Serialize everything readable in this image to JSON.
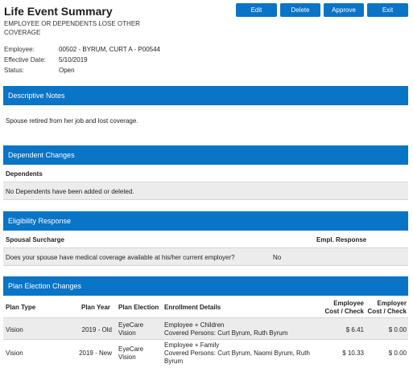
{
  "header": {
    "title": "Life Event Summary",
    "subtitle": "EMPLOYEE OR DEPENDENTS LOSE OTHER COVERAGE"
  },
  "buttons": {
    "edit": "Edit",
    "delete": "Delete",
    "approve": "Approve",
    "exit": "Exit"
  },
  "info": {
    "employee_label": "Employee:",
    "employee_value": "00502 - BYRUM, CURT A - P00544",
    "effective_label": "Effective Date:",
    "effective_value": "5/10/2019",
    "status_label": "Status:",
    "status_value": "Open"
  },
  "descriptive_notes": {
    "header": "Descriptive Notes",
    "text": "Spouse retired from her job and lost coverage."
  },
  "dependent_changes": {
    "header": "Dependent Changes",
    "column": "Dependents",
    "row": "No Dependents have been added or deleted."
  },
  "eligibility_response": {
    "header": "Eligibility Response",
    "col_surcharge": "Spousal Surcharge",
    "col_response": "Empl. Response",
    "question": "Does your spouse have medical coverage available at his/her current employer?",
    "answer": "No"
  },
  "plan_election_changes": {
    "header": "Plan Election Changes",
    "columns": {
      "plan_type": "Plan Type",
      "plan_year": "Plan Year",
      "plan_election": "Plan Election",
      "enrollment_details": "Enrollment Details",
      "employee_cost_1": "Employee",
      "employee_cost_2": "Cost / Check",
      "employer_cost_1": "Employer",
      "employer_cost_2": "Cost / Check"
    },
    "rows": [
      {
        "plan_type": "Vision",
        "plan_year": "2019 - Old",
        "plan_election_1": "EyeCare",
        "plan_election_2": "Vision",
        "enrollment_1": "Employee + Children",
        "enrollment_2": "Covered Persons: Curt Byrum, Ruth Byrum",
        "employee_cost": "$ 6.41",
        "employer_cost": "$ 0.00"
      },
      {
        "plan_type": "Vision",
        "plan_year": "2019 - New",
        "plan_election_1": "EyeCare",
        "plan_election_2": "Vision",
        "enrollment_1": "Employee + Family",
        "enrollment_2": "Covered Persons: Curt Byrum, Naomi Byrum, Ruth",
        "enrollment_3": "Byrum",
        "employee_cost": "$ 10.33",
        "employer_cost": "$ 0.00"
      }
    ]
  }
}
